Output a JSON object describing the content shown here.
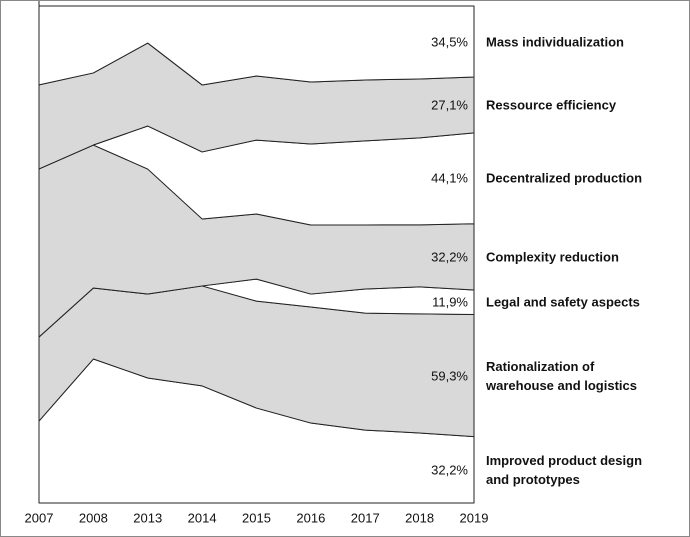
{
  "chart_data": {
    "type": "stacked_area",
    "categories": [
      "2007",
      "2008",
      "2013",
      "2014",
      "2015",
      "2016",
      "2017",
      "2018",
      "2019"
    ],
    "series": [
      {
        "name": "Improved product design and prototypes",
        "color": "#ffffff",
        "end_label": "32,2%",
        "values": [
          39.8,
          69.9,
          60.7,
          56.8,
          46.1,
          38.8,
          35.4,
          34.0,
          32.2
        ]
      },
      {
        "name": "Rationalization of warehouse and logistics",
        "color": "#d9d9d9",
        "end_label": "59,3%",
        "values": [
          40.8,
          34.5,
          40.8,
          48.5,
          51.9,
          56.3,
          56.8,
          57.8,
          59.3
        ]
      },
      {
        "name": "Legal and safety aspects",
        "color": "#ffffff",
        "end_label": "11,9%",
        "values": [
          0,
          0,
          0,
          0,
          10.7,
          6.3,
          11.7,
          13.1,
          11.9
        ]
      },
      {
        "name": "Complexity reduction",
        "color": "#d9d9d9",
        "end_label": "32,2%",
        "values": [
          81.6,
          69.4,
          60.7,
          32.5,
          31.6,
          33.5,
          31.1,
          30.1,
          32.2
        ]
      },
      {
        "name": "Decentralized production",
        "color": "#ffffff",
        "end_label": "44,1%",
        "values": [
          0,
          0,
          20.9,
          32.5,
          35.9,
          39.3,
          40.8,
          42.2,
          44.1
        ]
      },
      {
        "name": "Ressource efficiency",
        "color": "#d9d9d9",
        "end_label": "27,1%",
        "values": [
          40.8,
          35.0,
          40.3,
          32.5,
          31.1,
          30.1,
          29.6,
          28.6,
          27.1
        ]
      },
      {
        "name": "Mass individualization",
        "color": "#ffffff",
        "end_label": "34,5%",
        "values": [
          38.3,
          32.5,
          18.0,
          38.3,
          34.0,
          36.9,
          35.9,
          35.4,
          34.5
        ]
      }
    ]
  }
}
